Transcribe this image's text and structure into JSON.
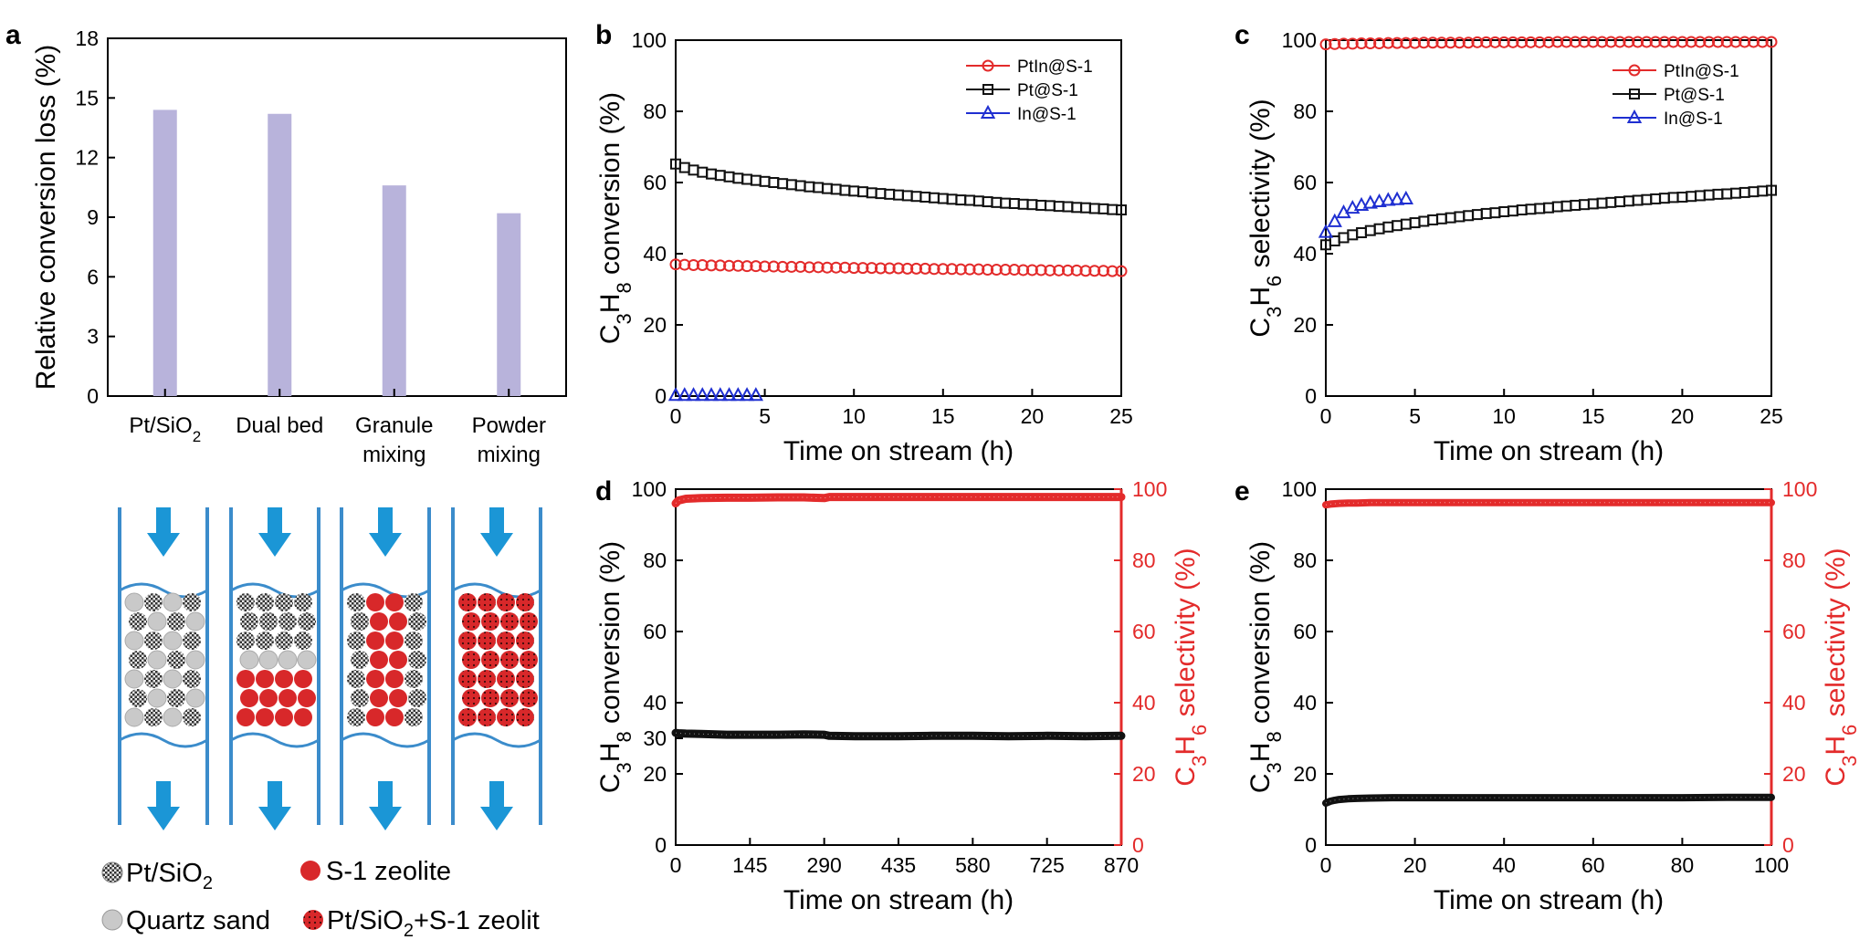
{
  "colors": {
    "bar": "#b8b3db",
    "red": "#e32b2b",
    "black": "#111111",
    "blue": "#1f2fd1",
    "tube": "#3b8ccb",
    "arrow": "#1b96d6",
    "grey": "#c9c9c9",
    "zeolite": "#d8282a"
  },
  "panel_letters": [
    "a",
    "b",
    "c",
    "d",
    "e"
  ],
  "schematic": {
    "legend": [
      {
        "label": "Pt/SiO2",
        "base": "Pt/SiO",
        "sub": "2",
        "icon": "checkered-particle-icon"
      },
      {
        "label": "S-1 zeolite",
        "icon": "red-particle-icon"
      },
      {
        "label": "Quartz sand",
        "icon": "grey-particle-icon"
      },
      {
        "label": "Pt/SiO2+S-1 zeolit",
        "base": "Pt/SiO",
        "sub": "2",
        "tail": "+S-1 zeolit",
        "icon": "red-dotted-particle-icon"
      }
    ]
  },
  "chart_data": [
    {
      "id": "a",
      "type": "bar",
      "categories": [
        "Pt/SiO2",
        "Dual bed",
        "Granule mixing",
        "Powder mixing"
      ],
      "category_lines": [
        [
          "Pt/SiO|2"
        ],
        [
          "Dual bed"
        ],
        [
          "Granule",
          "mixing"
        ],
        [
          "Powder",
          "mixing"
        ]
      ],
      "values": [
        14.4,
        14.2,
        10.6,
        9.2
      ],
      "ylabel": "Relative conversion loss (%)",
      "ylim": [
        0,
        18
      ],
      "yticks": [
        0,
        3,
        6,
        9,
        12,
        15,
        18
      ]
    },
    {
      "id": "b",
      "type": "line",
      "xlabel": "Time on stream (h)",
      "ylabel": "C3H8 conversion (%)",
      "ylabel_parts": [
        [
          "C",
          ""
        ],
        [
          "3",
          "sub"
        ],
        [
          "H",
          ""
        ],
        [
          "8",
          "sub"
        ],
        [
          " conversion (%)",
          ""
        ]
      ],
      "xlim": [
        0,
        25
      ],
      "ylim": [
        0,
        100
      ],
      "xticks": [
        0,
        5,
        10,
        15,
        20,
        25
      ],
      "yticks": [
        0,
        20,
        40,
        60,
        80,
        100
      ],
      "legend": "top-right",
      "series": [
        {
          "name": "PtIn@S-1",
          "color": "red",
          "marker": "circle",
          "x": [
            0,
            0.5,
            1,
            1.5,
            2,
            2.5,
            3,
            3.5,
            4,
            4.5,
            5,
            5.5,
            6,
            6.5,
            7,
            7.5,
            8,
            8.5,
            9,
            9.5,
            10,
            10.5,
            11,
            11.5,
            12,
            12.5,
            13,
            13.5,
            14,
            14.5,
            15,
            15.5,
            16,
            16.5,
            17,
            17.5,
            18,
            18.5,
            19,
            19.5,
            20,
            20.5,
            21,
            21.5,
            22,
            22.5,
            23,
            23.5,
            24,
            24.5,
            25
          ],
          "y": [
            37.0,
            36.9,
            36.8,
            36.8,
            36.7,
            36.7,
            36.6,
            36.6,
            36.5,
            36.5,
            36.4,
            36.4,
            36.3,
            36.3,
            36.3,
            36.2,
            36.2,
            36.1,
            36.1,
            36.1,
            36.0,
            36.0,
            36.0,
            35.9,
            35.9,
            35.9,
            35.8,
            35.8,
            35.8,
            35.7,
            35.7,
            35.7,
            35.6,
            35.6,
            35.6,
            35.5,
            35.5,
            35.5,
            35.5,
            35.4,
            35.4,
            35.4,
            35.3,
            35.3,
            35.3,
            35.3,
            35.2,
            35.2,
            35.2,
            35.1,
            35.1
          ]
        },
        {
          "name": "Pt@S-1",
          "color": "black",
          "marker": "square",
          "x": [
            0,
            0.5,
            1,
            1.5,
            2,
            2.5,
            3,
            3.5,
            4,
            4.5,
            5,
            5.5,
            6,
            6.5,
            7,
            7.5,
            8,
            8.5,
            9,
            9.5,
            10,
            10.5,
            11,
            11.5,
            12,
            12.5,
            13,
            13.5,
            14,
            14.5,
            15,
            15.5,
            16,
            16.5,
            17,
            17.5,
            18,
            18.5,
            19,
            19.5,
            20,
            20.5,
            21,
            21.5,
            22,
            22.5,
            23,
            23.5,
            24,
            24.5,
            25
          ],
          "y": [
            65.2,
            64.2,
            63.5,
            62.9,
            62.4,
            62.0,
            61.6,
            61.2,
            60.9,
            60.6,
            60.3,
            60.0,
            59.7,
            59.4,
            59.1,
            58.8,
            58.6,
            58.3,
            58.1,
            57.8,
            57.6,
            57.4,
            57.1,
            56.9,
            56.7,
            56.5,
            56.3,
            56.1,
            55.9,
            55.7,
            55.5,
            55.3,
            55.1,
            55.0,
            54.8,
            54.6,
            54.4,
            54.2,
            54.1,
            53.9,
            53.8,
            53.6,
            53.5,
            53.3,
            53.2,
            53.0,
            52.9,
            52.7,
            52.6,
            52.4,
            52.3
          ]
        },
        {
          "name": "In@S-1",
          "color": "blue",
          "marker": "triangle",
          "x": [
            0,
            0.5,
            1,
            1.5,
            2,
            2.5,
            3,
            3.5,
            4,
            4.5
          ],
          "y": [
            0.2,
            0.2,
            0.2,
            0.2,
            0.2,
            0.2,
            0.2,
            0.2,
            0.2,
            0.2
          ]
        }
      ]
    },
    {
      "id": "c",
      "type": "line",
      "xlabel": "Time on stream (h)",
      "ylabel": "C3H6 selectivity (%)",
      "ylabel_parts": [
        [
          "C",
          ""
        ],
        [
          "3",
          "sub"
        ],
        [
          "H",
          ""
        ],
        [
          "6",
          "sub"
        ],
        [
          " selectivity (%)",
          ""
        ]
      ],
      "xlim": [
        0,
        25
      ],
      "ylim": [
        0,
        100
      ],
      "xticks": [
        0,
        5,
        10,
        15,
        20,
        25
      ],
      "yticks": [
        0,
        20,
        40,
        60,
        80,
        100
      ],
      "legend": "top-right",
      "series": [
        {
          "name": "PtIn@S-1",
          "color": "red",
          "marker": "circle",
          "x": [
            0,
            0.5,
            1,
            1.5,
            2,
            2.5,
            3,
            3.5,
            4,
            4.5,
            5,
            5.5,
            6,
            6.5,
            7,
            7.5,
            8,
            8.5,
            9,
            9.5,
            10,
            10.5,
            11,
            11.5,
            12,
            12.5,
            13,
            13.5,
            14,
            14.5,
            15,
            15.5,
            16,
            16.5,
            17,
            17.5,
            18,
            18.5,
            19,
            19.5,
            20,
            20.5,
            21,
            21.5,
            22,
            22.5,
            23,
            23.5,
            24,
            24.5,
            25
          ],
          "y": [
            98.8,
            98.9,
            99.0,
            99.0,
            99.1,
            99.1,
            99.1,
            99.2,
            99.2,
            99.2,
            99.2,
            99.3,
            99.3,
            99.3,
            99.3,
            99.3,
            99.3,
            99.4,
            99.4,
            99.4,
            99.4,
            99.4,
            99.4,
            99.4,
            99.4,
            99.4,
            99.5,
            99.5,
            99.5,
            99.5,
            99.5,
            99.5,
            99.5,
            99.5,
            99.5,
            99.5,
            99.5,
            99.5,
            99.5,
            99.5,
            99.5,
            99.5,
            99.5,
            99.5,
            99.5,
            99.5,
            99.5,
            99.5,
            99.5,
            99.5,
            99.5
          ]
        },
        {
          "name": "Pt@S-1",
          "color": "black",
          "marker": "square",
          "x": [
            0,
            0.5,
            1,
            1.5,
            2,
            2.5,
            3,
            3.5,
            4,
            4.5,
            5,
            5.5,
            6,
            6.5,
            7,
            7.5,
            8,
            8.5,
            9,
            9.5,
            10,
            10.5,
            11,
            11.5,
            12,
            12.5,
            13,
            13.5,
            14,
            14.5,
            15,
            15.5,
            16,
            16.5,
            17,
            17.5,
            18,
            18.5,
            19,
            19.5,
            20,
            20.5,
            21,
            21.5,
            22,
            22.5,
            23,
            23.5,
            24,
            24.5,
            25
          ],
          "y": [
            42.5,
            43.6,
            44.5,
            45.3,
            45.9,
            46.5,
            47.0,
            47.5,
            47.9,
            48.3,
            48.7,
            49.1,
            49.5,
            49.8,
            50.1,
            50.4,
            50.7,
            51.0,
            51.3,
            51.5,
            51.8,
            52.0,
            52.3,
            52.5,
            52.7,
            52.9,
            53.2,
            53.4,
            53.6,
            53.8,
            54.0,
            54.2,
            54.4,
            54.6,
            54.8,
            55.0,
            55.2,
            55.4,
            55.6,
            55.8,
            55.9,
            56.1,
            56.3,
            56.5,
            56.7,
            56.8,
            57.0,
            57.2,
            57.4,
            57.6,
            57.8
          ]
        },
        {
          "name": "In@S-1",
          "color": "blue",
          "marker": "triangle",
          "x": [
            0,
            0.5,
            1,
            1.5,
            2,
            2.5,
            3,
            3.5,
            4,
            4.5
          ],
          "y": [
            46.0,
            49.0,
            51.5,
            52.8,
            53.6,
            54.2,
            54.6,
            55.0,
            55.2,
            55.4
          ]
        }
      ]
    },
    {
      "id": "d",
      "type": "line",
      "xlabel": "Time on stream (h)",
      "ylabel": "C3H8 conversion (%)",
      "ylabel_parts": [
        [
          "C",
          ""
        ],
        [
          "3",
          "sub"
        ],
        [
          "H",
          ""
        ],
        [
          "8",
          "sub"
        ],
        [
          " conversion (%)",
          ""
        ]
      ],
      "ylabel_right": "C3H6 selectivity (%)",
      "ylabel_right_parts": [
        [
          "C",
          ""
        ],
        [
          "3",
          "sub"
        ],
        [
          "H",
          ""
        ],
        [
          "6",
          "sub"
        ],
        [
          " selectivity (%)",
          ""
        ]
      ],
      "xlim": [
        0,
        870
      ],
      "ylim": [
        0,
        100
      ],
      "ylim_right": [
        0,
        100
      ],
      "xticks": [
        0,
        145,
        290,
        435,
        580,
        725,
        870
      ],
      "yticks": [
        0,
        20,
        40,
        60,
        80,
        100
      ],
      "yticks_left": [
        0,
        20,
        30,
        40,
        60,
        80,
        100
      ],
      "series": [
        {
          "name": "C3H8 conversion",
          "color": "black",
          "axis": "left",
          "marker": "dense",
          "x": [
            0,
            5,
            20,
            50,
            100,
            145,
            200,
            250,
            290,
            300,
            350,
            435,
            500,
            580,
            650,
            725,
            800,
            870
          ],
          "y": [
            31.5,
            31.4,
            31.3,
            31.2,
            31.0,
            31.0,
            31.0,
            31.1,
            31.0,
            30.7,
            30.6,
            30.6,
            30.7,
            30.7,
            30.6,
            30.7,
            30.6,
            30.7
          ]
        },
        {
          "name": "C3H6 selectivity",
          "color": "red",
          "axis": "right",
          "marker": "dense",
          "x": [
            0,
            5,
            20,
            50,
            100,
            145,
            200,
            250,
            290,
            300,
            350,
            435,
            500,
            580,
            650,
            725,
            800,
            870
          ],
          "y": [
            96.0,
            96.8,
            97.3,
            97.5,
            97.6,
            97.6,
            97.7,
            97.7,
            97.5,
            97.8,
            97.8,
            97.8,
            97.8,
            97.8,
            97.8,
            97.8,
            97.8,
            97.8
          ]
        }
      ]
    },
    {
      "id": "e",
      "type": "line",
      "xlabel": "Time on stream (h)",
      "ylabel": "C3H8 conversion (%)",
      "ylabel_parts": [
        [
          "C",
          ""
        ],
        [
          "3",
          "sub"
        ],
        [
          "H",
          ""
        ],
        [
          "8",
          "sub"
        ],
        [
          " conversion (%)",
          ""
        ]
      ],
      "ylabel_right": "C3H6 selectivity (%)",
      "ylabel_right_parts": [
        [
          "C",
          ""
        ],
        [
          "3",
          "sub"
        ],
        [
          "H",
          ""
        ],
        [
          "6",
          "sub"
        ],
        [
          " selectivity (%)",
          ""
        ]
      ],
      "xlim": [
        0,
        100
      ],
      "ylim": [
        0,
        100
      ],
      "ylim_right": [
        0,
        100
      ],
      "xticks": [
        0,
        20,
        40,
        60,
        80,
        100
      ],
      "yticks": [
        0,
        20,
        40,
        60,
        80,
        100
      ],
      "yticks_left": [
        0,
        20,
        40,
        60,
        80,
        100
      ],
      "series": [
        {
          "name": "C3H8 conversion",
          "color": "black",
          "axis": "left",
          "marker": "dense",
          "x": [
            0,
            1,
            2,
            3,
            5,
            7,
            10,
            15,
            20,
            30,
            40,
            50,
            60,
            70,
            80,
            90,
            100
          ],
          "y": [
            11.8,
            12.3,
            12.6,
            12.8,
            13.0,
            13.1,
            13.2,
            13.3,
            13.3,
            13.3,
            13.3,
            13.3,
            13.3,
            13.3,
            13.3,
            13.4,
            13.4
          ]
        },
        {
          "name": "C3H6 selectivity",
          "color": "red",
          "axis": "right",
          "marker": "dense",
          "x": [
            0,
            1,
            2,
            3,
            5,
            7,
            10,
            15,
            20,
            30,
            40,
            50,
            60,
            70,
            80,
            90,
            100
          ],
          "y": [
            95.6,
            95.8,
            95.9,
            96.0,
            96.1,
            96.1,
            96.2,
            96.2,
            96.2,
            96.2,
            96.2,
            96.2,
            96.2,
            96.2,
            96.2,
            96.2,
            96.2
          ]
        }
      ]
    }
  ]
}
